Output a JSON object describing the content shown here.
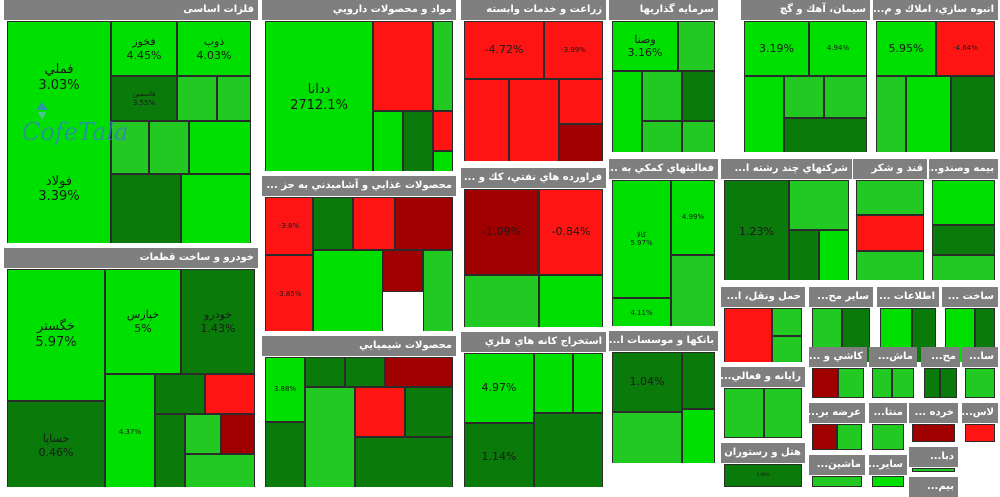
{
  "chart_data": {
    "type": "treemap",
    "title": "",
    "colors": {
      "up_bright": "#00e000",
      "up_mid": "#22c922",
      "up_dark": "#0a7a0a",
      "down_bright": "#ff1414",
      "down_dark": "#a00000",
      "header": "#7f7f7f",
      "border": "#2b2b2b"
    },
    "sectors": [
      {
        "name": "فلزات اساسی",
        "tiles": [
          {
            "name": "فملي",
            "change": "3.03%",
            "value": 3.03
          },
          {
            "name": "فولاد",
            "change": "3.39%",
            "value": 3.39
          },
          {
            "name": "فخوز",
            "change": "4.45%",
            "value": 4.45
          },
          {
            "name": "ذوب",
            "change": "4.03%",
            "value": 4.03
          },
          {
            "name": "فاسمين",
            "change": "3.55%",
            "value": 3.55
          },
          {
            "name": "",
            "change": "",
            "value": 2
          },
          {
            "name": "",
            "change": "",
            "value": 2
          },
          {
            "name": "",
            "change": "",
            "value": 2
          },
          {
            "name": "",
            "change": "",
            "value": 1.5
          },
          {
            "name": "",
            "change": "",
            "value": 3.5
          },
          {
            "name": "",
            "change": "",
            "value": 1
          },
          {
            "name": "",
            "change": "",
            "value": 2.5
          }
        ]
      },
      {
        "name": "مواد و محصولات دارويي",
        "tiles": [
          {
            "name": "ددانا",
            "change": "2712.1%",
            "value": 2712.1
          },
          {
            "name": "",
            "change": "",
            "value": -3
          },
          {
            "name": "",
            "change": "",
            "value": 2
          },
          {
            "name": "",
            "change": "",
            "value": 3
          },
          {
            "name": "",
            "change": "",
            "value": 1
          },
          {
            "name": "",
            "change": "",
            "value": -2
          },
          {
            "name": "",
            "change": "",
            "value": 2.5
          }
        ]
      },
      {
        "name": "زراعت و خدمات وابسته",
        "tiles": [
          {
            "name": "",
            "change": "-4.72%",
            "value": -4.72
          },
          {
            "name": "",
            "change": "-3.99%",
            "value": -3.99
          },
          {
            "name": "",
            "change": "",
            "value": -2.5
          },
          {
            "name": "",
            "change": "",
            "value": -3
          },
          {
            "name": "",
            "change": "",
            "value": -1.5
          },
          {
            "name": "",
            "change": "",
            "value": -2
          }
        ]
      },
      {
        "name": "سرمايه گذاريها",
        "tiles": [
          {
            "name": "وصنا",
            "change": "3.16%",
            "value": 3.16
          },
          {
            "name": "",
            "change": "",
            "value": 2
          },
          {
            "name": "",
            "change": "",
            "value": 2.5
          },
          {
            "name": "",
            "change": "",
            "value": 1.5
          },
          {
            "name": "",
            "change": "",
            "value": 3
          },
          {
            "name": "",
            "change": "",
            "value": 2.2
          },
          {
            "name": "",
            "change": "",
            "value": 1.8
          }
        ]
      },
      {
        "name": "سيمان، آهك و گچ",
        "tiles": [
          {
            "name": "",
            "change": "3.19%",
            "value": 3.19
          },
          {
            "name": "",
            "change": "4.94%",
            "value": 4.94
          },
          {
            "name": "",
            "change": "",
            "value": 2.77
          },
          {
            "name": "",
            "change": "",
            "value": 1.9
          },
          {
            "name": "",
            "change": "",
            "value": 2.4
          },
          {
            "name": "",
            "change": "",
            "value": 1.2
          }
        ]
      },
      {
        "name": "انبوه سازي، املاك و م...",
        "tiles": [
          {
            "name": "",
            "change": "5.95%",
            "value": 5.95
          },
          {
            "name": "",
            "change": "-4.64%",
            "value": -4.64
          },
          {
            "name": "",
            "change": "",
            "value": 1.5
          },
          {
            "name": "",
            "change": "",
            "value": 2.8
          },
          {
            "name": "",
            "change": "",
            "value": 3.6
          }
        ]
      },
      {
        "name": "خودرو و ساخت قطعات",
        "tiles": [
          {
            "name": "خگستر",
            "change": "5.97%",
            "value": 5.97
          },
          {
            "name": "خساپا",
            "change": "0.46%",
            "value": 0.46
          },
          {
            "name": "خپارس",
            "change": "5%",
            "value": 5
          },
          {
            "name": "خودرو",
            "change": "1.43%",
            "value": 1.43
          },
          {
            "name": "",
            "change": "4.37%",
            "value": 4.37
          },
          {
            "name": "",
            "change": "",
            "value": 1.2
          },
          {
            "name": "",
            "change": "",
            "value": -2
          },
          {
            "name": "",
            "change": "",
            "value": 3
          },
          {
            "name": "",
            "change": "",
            "value": 2.4
          },
          {
            "name": "",
            "change": "",
            "value": -1.5
          },
          {
            "name": "",
            "change": "",
            "value": 2
          }
        ]
      },
      {
        "name": "محصولات غذايي و آشاميدني به جز ...",
        "tiles": [
          {
            "name": "",
            "change": "-3.8%",
            "value": -3.8
          },
          {
            "name": "",
            "change": "-3.85%",
            "value": -3.85
          },
          {
            "name": "",
            "change": "",
            "value": 1
          },
          {
            "name": "",
            "change": "",
            "value": -2.5
          },
          {
            "name": "",
            "change": "",
            "value": -2
          },
          {
            "name": "",
            "change": "",
            "value": 2.5
          },
          {
            "name": "",
            "change": "",
            "value": -1.5
          },
          {
            "name": "",
            "change": "",
            "value": 1.8
          }
        ]
      },
      {
        "name": "محصولات شيميايي",
        "tiles": [
          {
            "name": "",
            "change": "3.88%",
            "value": 3.88
          },
          {
            "name": "",
            "change": "",
            "value": 2.5
          },
          {
            "name": "",
            "change": "",
            "value": 1.2
          },
          {
            "name": "",
            "change": "",
            "value": -2
          },
          {
            "name": "",
            "change": "",
            "value": 3.1
          },
          {
            "name": "",
            "change": "",
            "value": 1.6
          },
          {
            "name": "",
            "change": "",
            "value": -1.5
          },
          {
            "name": "",
            "change": "",
            "value": 2.8
          },
          {
            "name": "",
            "change": "",
            "value": 0.9
          }
        ]
      },
      {
        "name": "فراورده هاي نفتي، كك و ...",
        "tiles": [
          {
            "name": "",
            "change": "-1.09%",
            "value": -1.09
          },
          {
            "name": "",
            "change": "-0.84%",
            "value": -0.84
          },
          {
            "name": "",
            "change": "",
            "value": 1.51
          },
          {
            "name": "",
            "change": "",
            "value": 2.61
          }
        ]
      },
      {
        "name": "استخراج كانه هاي فلزي",
        "tiles": [
          {
            "name": "",
            "change": "4.97%",
            "value": 4.97
          },
          {
            "name": "",
            "change": "1.14%",
            "value": 1.14
          },
          {
            "name": "",
            "change": "",
            "value": 2.8
          },
          {
            "name": "",
            "change": "",
            "value": 4.27
          },
          {
            "name": "",
            "change": "",
            "value": 1.3
          }
        ]
      },
      {
        "name": "فعاليتهاي كمكي به ...",
        "tiles": [
          {
            "name": "كالا",
            "change": "5.97%",
            "value": 5.97
          },
          {
            "name": "",
            "change": "4.99%",
            "value": 4.99
          },
          {
            "name": "",
            "change": "4.11%",
            "value": 4.11
          },
          {
            "name": "",
            "change": "",
            "value": 1.6
          }
        ]
      },
      {
        "name": "شركتهاي چند رشته ا...",
        "tiles": [
          {
            "name": "",
            "change": "1.23%",
            "value": 1.23
          },
          {
            "name": "",
            "change": "",
            "value": 2.1
          },
          {
            "name": "",
            "change": "",
            "value": 1.1
          },
          {
            "name": "",
            "change": "",
            "value": 2.6
          }
        ]
      },
      {
        "name": "قند و شكر",
        "tiles": [
          {
            "name": "",
            "change": "",
            "value": 1.6
          },
          {
            "name": "",
            "change": "",
            "value": -2.4
          },
          {
            "name": "",
            "change": "",
            "value": 2.2
          }
        ]
      },
      {
        "name": "بيمه وصندو...",
        "tiles": [
          {
            "name": "",
            "change": "",
            "value": 2.7
          },
          {
            "name": "",
            "change": "",
            "value": 1.4
          },
          {
            "name": "",
            "change": "",
            "value": 2.3
          }
        ]
      },
      {
        "name": "بانكها و موسسات ا...",
        "tiles": [
          {
            "name": "",
            "change": "1.04%",
            "value": 1.04
          },
          {
            "name": "",
            "change": "",
            "value": 2.2
          },
          {
            "name": "",
            "change": "",
            "value": 1.1
          },
          {
            "name": "",
            "change": "",
            "value": 2.9
          }
        ]
      },
      {
        "name": "حمل ونقل، ا...",
        "tiles": [
          {
            "name": "",
            "change": "",
            "value": -1.8
          },
          {
            "name": "",
            "change": "",
            "value": 1.6
          },
          {
            "name": "",
            "change": "",
            "value": 2.4
          }
        ]
      },
      {
        "name": "ساير مح...",
        "tiles": [
          {
            "name": "",
            "change": "",
            "value": 1.8
          },
          {
            "name": "",
            "change": "",
            "value": 2.6
          }
        ]
      },
      {
        "name": "اطلاعات ...",
        "tiles": [
          {
            "name": "",
            "change": "",
            "value": 2.5
          },
          {
            "name": "",
            "change": "",
            "value": 1.3
          }
        ]
      },
      {
        "name": "ساخت ...",
        "tiles": [
          {
            "name": "",
            "change": "",
            "value": 2.7
          },
          {
            "name": "",
            "change": "",
            "value": 1.2
          }
        ]
      },
      {
        "name": "رايانه و فعالي...",
        "tiles": [
          {
            "name": "",
            "change": "",
            "value": 2.1
          },
          {
            "name": "",
            "change": "",
            "value": 1.5
          }
        ]
      },
      {
        "name": "كاشي و ...",
        "tiles": [
          {
            "name": "",
            "change": "",
            "value": -1.5
          },
          {
            "name": "",
            "change": "",
            "value": 2.4
          }
        ]
      },
      {
        "name": "ماش...",
        "tiles": [
          {
            "name": "",
            "change": "",
            "value": 2.2
          },
          {
            "name": "",
            "change": "",
            "value": 1.5
          }
        ]
      },
      {
        "name": "مح...",
        "tiles": [
          {
            "name": "",
            "change": "",
            "value": 1.2
          },
          {
            "name": "",
            "change": "",
            "value": 2.6
          }
        ]
      },
      {
        "name": "سا...",
        "tiles": [
          {
            "name": "",
            "change": "",
            "value": 2.4
          }
        ]
      },
      {
        "name": "عرضه بر...",
        "tiles": [
          {
            "name": "",
            "change": "",
            "value": -1.2
          },
          {
            "name": "",
            "change": "",
            "value": 2.3
          }
        ]
      },
      {
        "name": "منتا...",
        "tiles": [
          {
            "name": "",
            "change": "",
            "value": 1.8
          }
        ]
      },
      {
        "name": "خرده ...",
        "tiles": [
          {
            "name": "",
            "change": "",
            "value": -2.2
          }
        ]
      },
      {
        "name": "لاس...",
        "tiles": [
          {
            "name": "",
            "change": "",
            "value": -2.4
          }
        ]
      },
      {
        "name": "هتل و رستوران",
        "tiles": [
          {
            "name": "",
            "change": "1.08%",
            "value": 1.08
          }
        ]
      },
      {
        "name": "ماشين...",
        "tiles": [
          {
            "name": "",
            "change": "",
            "value": 1.6
          }
        ]
      },
      {
        "name": "ساير...",
        "tiles": [
          {
            "name": "",
            "change": "",
            "value": 2.5
          }
        ]
      },
      {
        "name": "دبا...",
        "tiles": [
          {
            "name": "",
            "change": "",
            "value": 2.2
          }
        ]
      },
      {
        "name": "بيم...",
        "tiles": [
          {
            "name": "",
            "change": "",
            "value": 2.6
          }
        ]
      }
    ]
  },
  "watermark": {
    "text": "CofeTala"
  }
}
